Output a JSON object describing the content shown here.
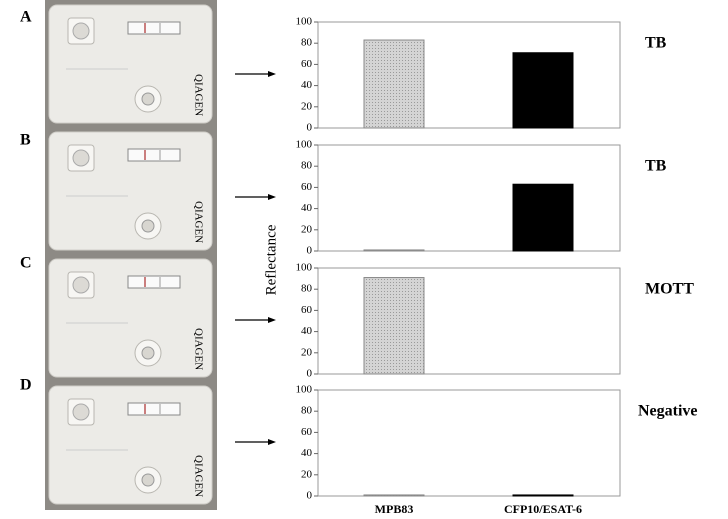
{
  "ylabel": "Reflectance",
  "chart_data": [
    {
      "type": "bar",
      "panel": "A",
      "label": "TB",
      "values": [
        83,
        71
      ],
      "colors": [
        "#c8c8c8",
        "#000000"
      ],
      "ylim": [
        0,
        100
      ],
      "yticks": [
        0,
        20,
        40,
        60,
        80,
        100
      ]
    },
    {
      "type": "bar",
      "panel": "B",
      "label": "TB",
      "values": [
        1,
        63
      ],
      "colors": [
        "#c8c8c8",
        "#000000"
      ],
      "ylim": [
        0,
        100
      ],
      "yticks": [
        0,
        20,
        40,
        60,
        80,
        100
      ]
    },
    {
      "type": "bar",
      "panel": "C",
      "label": "MOTT",
      "values": [
        91,
        0
      ],
      "colors": [
        "#c8c8c8",
        "#000000"
      ],
      "ylim": [
        0,
        100
      ],
      "yticks": [
        0,
        20,
        40,
        60,
        80,
        100
      ]
    },
    {
      "type": "bar",
      "panel": "D",
      "label": "Negative",
      "categories": [
        "MPB83",
        "CFP10/ESAT-6"
      ],
      "values": [
        1,
        1
      ],
      "colors": [
        "#c8c8c8",
        "#000000"
      ],
      "ylim": [
        0,
        100
      ],
      "yticks": [
        0,
        20,
        40,
        60,
        80,
        100
      ]
    }
  ]
}
